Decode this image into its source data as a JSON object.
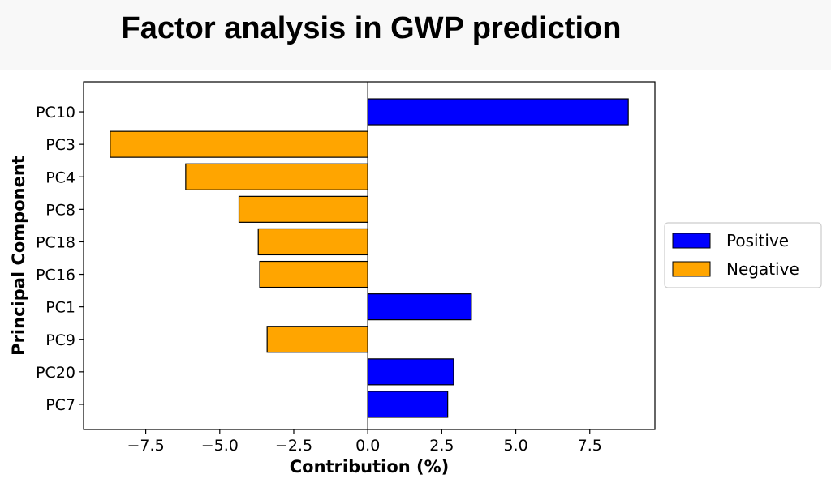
{
  "chart_data": {
    "type": "bar",
    "orientation": "horizontal",
    "title": "Factor analysis in GWP prediction",
    "xlabel": "Contribution (%)",
    "ylabel": "Principal Component",
    "categories": [
      "PC10",
      "PC3",
      "PC4",
      "PC8",
      "PC18",
      "PC16",
      "PC1",
      "PC9",
      "PC20",
      "PC7"
    ],
    "values": [
      8.8,
      -8.7,
      -6.15,
      -4.35,
      -3.7,
      -3.65,
      3.5,
      -3.4,
      2.9,
      2.7
    ],
    "xlim": [
      -9.6,
      9.7
    ],
    "xticks": [
      -7.5,
      -5.0,
      -2.5,
      0.0,
      2.5,
      5.0,
      7.5
    ],
    "xtick_labels": [
      "−7.5",
      "−5.0",
      "−2.5",
      "0.0",
      "2.5",
      "5.0",
      "7.5"
    ],
    "grid": false,
    "legend": {
      "placement": "right",
      "entries": [
        {
          "label": "Positive",
          "color": "#0000ff"
        },
        {
          "label": "Negative",
          "color": "#ffa500"
        }
      ]
    },
    "colors": {
      "positive": "#0000ff",
      "negative": "#ffa500",
      "edge": "#000000"
    }
  }
}
